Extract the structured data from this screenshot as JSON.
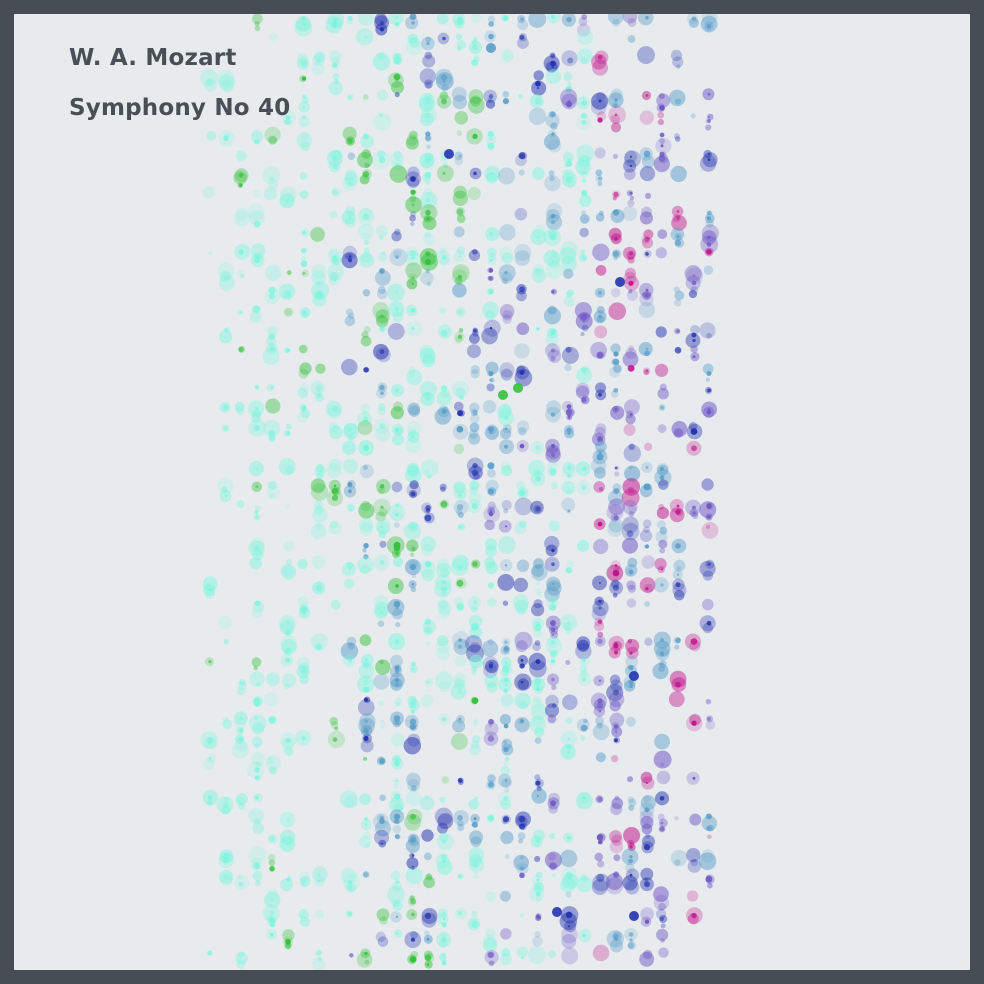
{
  "artwork": {
    "composer": "W. A. Mozart",
    "work": "Symphony No 40"
  },
  "palette": {
    "frame": "#474d55",
    "background": "#e8ebee",
    "text": "#4a4f57",
    "voices": [
      "#7ff5dd",
      "#34c23a",
      "#2433b0",
      "#5a9ec9",
      "#6b55c4",
      "#c0138a"
    ]
  }
}
